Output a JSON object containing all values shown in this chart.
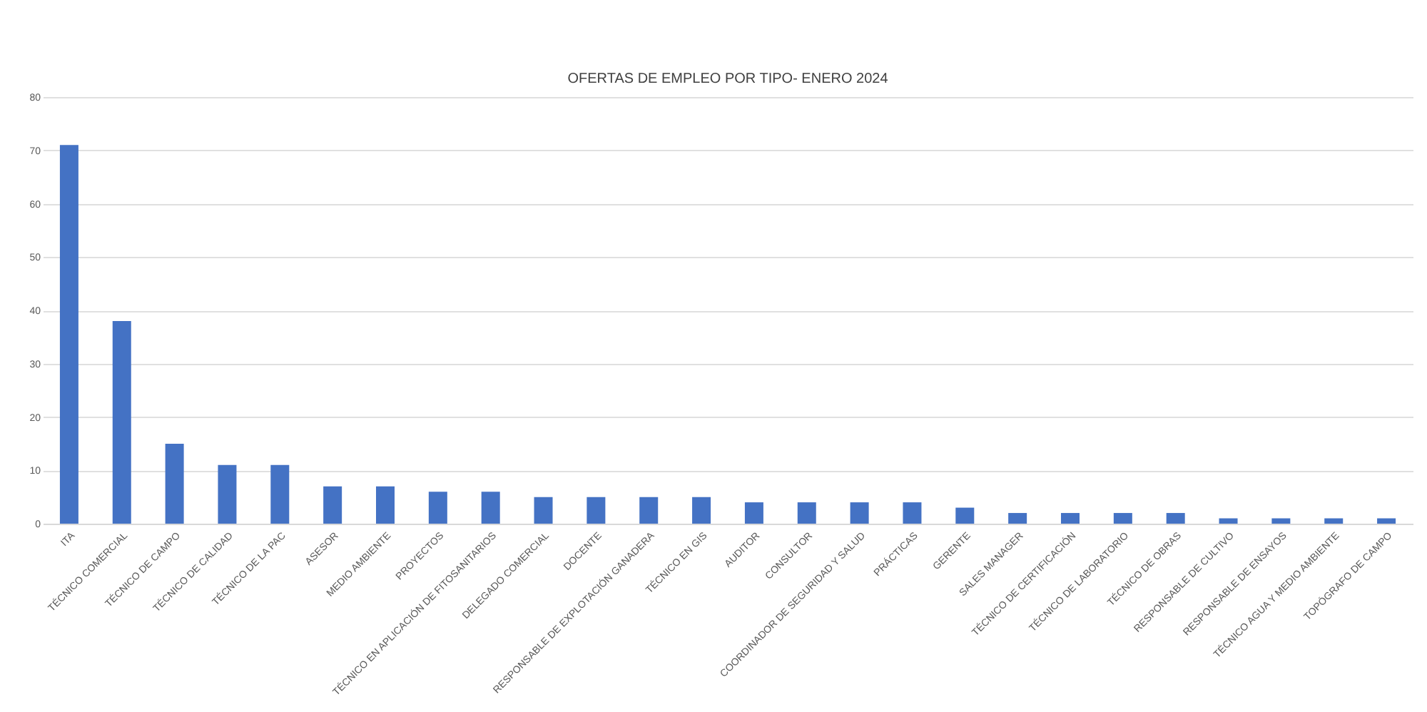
{
  "chart_data": {
    "type": "bar",
    "title": "OFERTAS DE EMPLEO POR TIPO- ENERO 2024",
    "categories": [
      "ITA",
      "TÉCNICO COMERCIAL",
      "TÉCNICO DE CAMPO",
      "TÉCNICO DE CALIDAD",
      "TÉCNICO DE LA PAC",
      "ASESOR",
      "MEDIO AMBIENTE",
      "PROYECTOS",
      "TÉCNICO EN APLICACIÓN DE FITOSANITARIOS",
      "DELEGADO COMERCIAL",
      "DOCENTE",
      "RESPONSABLE DE EXPLOTACIÓN GANADERA",
      "TÉCNICO EN GIS",
      "AUDITOR",
      "CONSULTOR",
      "COORDINADOR DE SEGURIDAD Y SALUD",
      "PRÁCTICAS",
      "GERENTE",
      "SALES MANAGER",
      "TÉCNICO DE CERTIFICACIÓN",
      "TÉCNICO DE LABORATORIO",
      "TÉCNICO DE OBRAS",
      "RESPONSABLE DE CULTIVO",
      "RESPONSABLE DE ENSAYOS",
      "TÉCNICO AGUA Y MEDIO AMBIENTE",
      "TOPÓGRAFO DE CAMPO"
    ],
    "values": [
      71,
      38,
      15,
      11,
      11,
      7,
      7,
      6,
      6,
      5,
      5,
      5,
      5,
      4,
      4,
      4,
      4,
      3,
      2,
      2,
      2,
      2,
      1,
      1,
      1,
      1
    ],
    "color": "#4472c4",
    "ylim": [
      0,
      80
    ],
    "yticks": [
      0,
      10,
      20,
      30,
      40,
      50,
      60,
      70,
      80
    ],
    "grid": "y"
  }
}
